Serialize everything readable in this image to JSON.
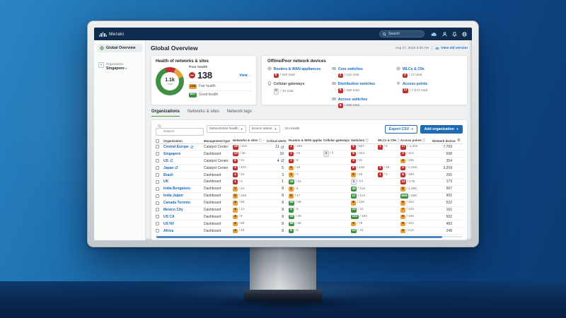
{
  "colors": {
    "navbar": "#0d2c4e",
    "accent_blue": "#1f6bb3",
    "link_blue": "#176bbd",
    "crit_red": "#c22f2f",
    "warn_yellow": "#e9a13b",
    "ok_green": "#3f8f44",
    "tab_green": "#4e9e3f"
  },
  "navbar": {
    "brand": "Meraki",
    "search_placeholder": "Search",
    "icons": [
      "cloud-icon",
      "account-icon",
      "notifications-icon",
      "globe-icon"
    ]
  },
  "sidebar": {
    "items": [
      {
        "label": "Global Overview",
        "icon": "globe-green-icon"
      }
    ],
    "org_label": "Organization",
    "org_value": "Singapore"
  },
  "header": {
    "title": "Global Overview",
    "timestamp": "Aug 27, 2025 9:30 AM",
    "view_old_label": "View old version"
  },
  "health_card": {
    "title": "Health of networks & sites",
    "donut": {
      "total_label": "1.1k",
      "total_sub": "Total",
      "segments": [
        {
          "name": "poor",
          "value": 138,
          "color": "#c22f2f"
        },
        {
          "name": "fair",
          "value": 145,
          "color": "#e9a13b"
        },
        {
          "name": "good",
          "value": 837,
          "color": "#3f8f44"
        }
      ]
    },
    "poor": {
      "label": "Poor health",
      "value": "138",
      "view_label": "View →"
    },
    "rows": [
      {
        "status": "warn",
        "value": "145",
        "label": "Fair health"
      },
      {
        "status": "ok",
        "value": "837",
        "label": "Good health"
      }
    ]
  },
  "devices_card": {
    "title": "Offline/Poor network devices",
    "columns": [
      [
        {
          "label": "Routers & WAN appliances",
          "icon": "router-icon",
          "link": true,
          "status": "crit",
          "count": "8",
          "total": "346"
        },
        {
          "label": "Cellular gateways",
          "icon": "cellular-icon",
          "link": false,
          "status": "zero",
          "count": "0",
          "total": "34"
        }
      ],
      [
        {
          "label": "Core switches",
          "icon": "switch-icon",
          "link": true,
          "status": "crit",
          "count": "2",
          "total": "116"
        },
        {
          "label": "Distribution switches",
          "icon": "switch-icon",
          "link": true,
          "status": "crit",
          "count": "6",
          "total": "486"
        },
        {
          "label": "Access switches",
          "icon": "switch-icon",
          "link": true,
          "status": "crit",
          "count": "8",
          "total": "886"
        }
      ],
      [
        {
          "label": "WLCs & C9s",
          "icon": "router-icon",
          "link": true,
          "status": "crit",
          "count": "2",
          "total": "12"
        },
        {
          "label": "Access points",
          "icon": "wifi-icon",
          "link": true,
          "status": "crit",
          "count": "11",
          "total": "7,574"
        }
      ]
    ]
  },
  "tabs": [
    {
      "label": "Organizations",
      "active": true
    },
    {
      "label": "Networks & sites",
      "active": false
    },
    {
      "label": "Network tags",
      "active": false
    }
  ],
  "toolbar": {
    "search_placeholder": "Search",
    "filters": [
      "Network/site health",
      "Device status"
    ],
    "results": "15 results",
    "export_label": "Export CSV",
    "add_label": "Add organization"
  },
  "table": {
    "headers": [
      {
        "label": "Organization"
      },
      {
        "label": "Management type"
      },
      {
        "label": "Networks & sites",
        "info": true,
        "sort": true
      },
      {
        "label": "Critical alerts"
      },
      {
        "label": "Routers & WAN appliances",
        "info": true
      },
      {
        "label": "Cellular gateways",
        "info": true
      },
      {
        "label": "Switches",
        "info": true
      },
      {
        "label": "WLCs & C9s",
        "info": true
      },
      {
        "label": "Access points",
        "info": true
      },
      {
        "label": "Network devices"
      }
    ],
    "rows": [
      {
        "org": "Central Europe",
        "ext": true,
        "mgmt": "Catalyst Center",
        "networks": {
          "s": "crit",
          "n": "18",
          "t": "231"
        },
        "critical": {
          "n": "11",
          "ext": true
        },
        "routers": {
          "s": "crit",
          "n": "2",
          "t": "169"
        },
        "cellular": null,
        "switches": {
          "s": "crit",
          "n": "9",
          "t": "587"
        },
        "wlcs": {
          "s": "crit",
          "n": "1",
          "t": "8"
        },
        "aps": {
          "s": "crit",
          "n": "17",
          "t": "4,334"
        },
        "devices": "7,709"
      },
      {
        "org": "Singapore",
        "ext": false,
        "mgmt": "Dashboard",
        "networks": {
          "s": "crit",
          "n": "10",
          "t": "35"
        },
        "critical": {
          "n": "10",
          "ext": false
        },
        "routers": {
          "s": "crit",
          "n": "1",
          "t": "23"
        },
        "cellular": {
          "s": "zero",
          "n": "3",
          "t": "3"
        },
        "switches": {
          "s": "crit",
          "n": "8",
          "t": "104"
        },
        "wlcs": null,
        "aps": {
          "s": "crit",
          "n": "3",
          "t": "312"
        },
        "devices": "598"
      },
      {
        "org": "US",
        "ext": true,
        "mgmt": "Catalyst Center",
        "networks": {
          "s": "crit",
          "n": "9",
          "t": "31"
        },
        "critical": {
          "n": "4",
          "ext": true
        },
        "routers": {
          "s": "crit",
          "n": "1",
          "t": "8"
        },
        "cellular": null,
        "switches": {
          "s": "crit",
          "n": "3",
          "t": "31"
        },
        "wlcs": null,
        "aps": {
          "s": "warn",
          "n": "4",
          "t": "235"
        },
        "devices": "354"
      },
      {
        "org": "Japan",
        "ext": true,
        "mgmt": "Catalyst Center",
        "networks": {
          "s": "crit",
          "n": "4",
          "t": "402"
        },
        "critical": {
          "n": "5",
          "ext": false
        },
        "routers": {
          "s": "warn",
          "n": "5",
          "t": "16"
        },
        "cellular": null,
        "switches": {
          "s": "crit",
          "n": "8",
          "t": "145"
        },
        "wlcs": {
          "s": "crit",
          "n": "1",
          "t": "15"
        },
        "aps": {
          "s": "crit",
          "n": "4",
          "t": "1,316"
        },
        "devices": "3,209"
      },
      {
        "org": "Brazil",
        "ext": false,
        "mgmt": "Dashboard",
        "networks": {
          "s": "crit",
          "n": "4",
          "t": "22"
        },
        "critical": {
          "n": "3",
          "ext": false
        },
        "routers": {
          "s": "warn",
          "n": "1",
          "t": "7"
        },
        "cellular": null,
        "switches": {
          "s": "warn",
          "n": "9",
          "t": "48"
        },
        "wlcs": {
          "s": "crit",
          "n": "1",
          "t": "2"
        },
        "aps": {
          "s": "crit",
          "n": "8",
          "t": "189"
        },
        "devices": "255"
      },
      {
        "org": "UK",
        "ext": false,
        "mgmt": "Dashboard",
        "networks": {
          "s": "crit",
          "n": "1",
          "t": "9"
        },
        "critical": {
          "n": "1",
          "ext": false
        },
        "routers": {
          "s": "ok",
          "n": "16",
          "t": "16"
        },
        "cellular": null,
        "switches": {
          "s": "zero",
          "n": "2",
          "t": "24"
        },
        "wlcs": null,
        "aps": {
          "s": "crit",
          "n": "12",
          "t": "178"
        },
        "devices": "179"
      },
      {
        "org": "India Bengaluru",
        "ext": false,
        "mgmt": "Dashboard",
        "networks": {
          "s": "warn",
          "n": "7",
          "t": "24"
        },
        "critical": {
          "n": "8",
          "ext": false
        },
        "routers": {
          "s": "warn",
          "n": "1",
          "t": "5"
        },
        "cellular": null,
        "switches": {
          "s": "ok",
          "n": "38",
          "t": "118"
        },
        "wlcs": null,
        "aps": {
          "s": "warn",
          "n": "8",
          "t": "1,485"
        },
        "devices": "567"
      },
      {
        "org": "India Jaipur",
        "ext": false,
        "mgmt": "Dashboard",
        "networks": {
          "s": "warn",
          "n": "5",
          "t": "238"
        },
        "critical": {
          "n": "8",
          "ext": false
        },
        "routers": {
          "s": "warn",
          "n": "5",
          "t": "17"
        },
        "cellular": null,
        "switches": {
          "s": "ok",
          "n": "21",
          "t": "121"
        },
        "wlcs": null,
        "aps": {
          "s": "ok",
          "n": "668",
          "t": "668"
        },
        "devices": "902"
      },
      {
        "org": "Canada Toronto",
        "ext": false,
        "mgmt": "Dashboard",
        "networks": {
          "s": "warn",
          "n": "4",
          "t": "50"
        },
        "critical": {
          "n": "8",
          "ext": false
        },
        "routers": {
          "s": "ok",
          "n": "56",
          "t": "58"
        },
        "cellular": null,
        "switches": {
          "s": "warn",
          "n": "8",
          "t": "126"
        },
        "wlcs": null,
        "aps": {
          "s": "warn",
          "n": "9",
          "t": "342"
        },
        "devices": "522"
      },
      {
        "org": "Mexico City",
        "ext": false,
        "mgmt": "Dashboard",
        "networks": {
          "s": "warn",
          "n": "4",
          "t": "14"
        },
        "critical": {
          "n": "8",
          "ext": false
        },
        "routers": {
          "s": "ok",
          "n": "5",
          "t": "5"
        },
        "cellular": null,
        "switches": {
          "s": "ok",
          "n": "24",
          "t": "24"
        },
        "wlcs": null,
        "aps": {
          "s": "warn",
          "n": "7",
          "t": "120"
        },
        "devices": "161"
      },
      {
        "org": "US CA",
        "ext": false,
        "mgmt": "Dashboard",
        "networks": {
          "s": "warn",
          "n": "4",
          "t": "8"
        },
        "critical": {
          "n": "8",
          "ext": false
        },
        "routers": {
          "s": "ok",
          "n": "28",
          "t": "28"
        },
        "cellular": null,
        "switches": {
          "s": "ok",
          "n": "192",
          "t": "192"
        },
        "wlcs": null,
        "aps": {
          "s": "warn",
          "n": "9",
          "t": "345"
        },
        "devices": "502"
      },
      {
        "org": "US NY",
        "ext": false,
        "mgmt": "Dashboard",
        "networks": {
          "s": "warn",
          "n": "4",
          "t": "80"
        },
        "critical": {
          "n": "8",
          "ext": false
        },
        "routers": {
          "s": "ok",
          "n": "58",
          "t": "58"
        },
        "cellular": null,
        "switches": {
          "s": "warn",
          "n": "2",
          "t": "79"
        },
        "wlcs": null,
        "aps": {
          "s": "warn",
          "n": "9",
          "t": "342"
        },
        "devices": "483"
      },
      {
        "org": "Africa",
        "ext": false,
        "mgmt": "Dashboard",
        "networks": {
          "s": "warn",
          "n": "4",
          "t": "45"
        },
        "critical": {
          "n": "8",
          "ext": false
        },
        "routers": {
          "s": "ok",
          "n": "6",
          "t": "6"
        },
        "cellular": null,
        "switches": {
          "s": "ok",
          "n": "24",
          "t": "24"
        },
        "wlcs": null,
        "aps": {
          "s": "warn",
          "n": "4",
          "t": "215"
        },
        "devices": "248"
      }
    ]
  }
}
